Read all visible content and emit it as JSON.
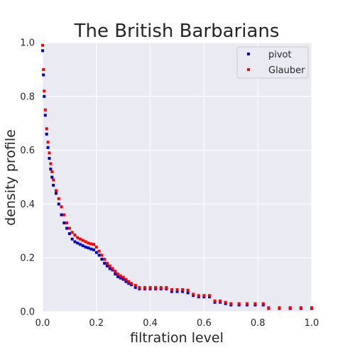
{
  "chart_data": {
    "type": "scatter",
    "title": "The British Barbarians",
    "xlabel": "filtration level",
    "ylabel": "density profile",
    "xlim": [
      0.0,
      1.0
    ],
    "ylim": [
      0.0,
      1.0
    ],
    "xticks": [
      "0.0",
      "0.2",
      "0.4",
      "0.6",
      "0.8",
      "1.0"
    ],
    "yticks": [
      "0.0",
      "0.2",
      "0.4",
      "0.6",
      "0.8",
      "1.0"
    ],
    "grid": true,
    "legend_position": "top-right",
    "series": [
      {
        "name": "pivot",
        "color": "#0000cc",
        "points": [
          [
            0.0,
            0.97
          ],
          [
            0.003,
            0.88
          ],
          [
            0.006,
            0.8
          ],
          [
            0.01,
            0.73
          ],
          [
            0.015,
            0.66
          ],
          [
            0.02,
            0.61
          ],
          [
            0.025,
            0.57
          ],
          [
            0.03,
            0.53
          ],
          [
            0.035,
            0.5
          ],
          [
            0.04,
            0.47
          ],
          [
            0.05,
            0.44
          ],
          [
            0.06,
            0.4
          ],
          [
            0.07,
            0.36
          ],
          [
            0.08,
            0.33
          ],
          [
            0.09,
            0.31
          ],
          [
            0.1,
            0.29
          ],
          [
            0.11,
            0.27
          ],
          [
            0.12,
            0.26
          ],
          [
            0.13,
            0.255
          ],
          [
            0.14,
            0.25
          ],
          [
            0.15,
            0.245
          ],
          [
            0.16,
            0.24
          ],
          [
            0.17,
            0.237
          ],
          [
            0.18,
            0.233
          ],
          [
            0.19,
            0.23
          ],
          [
            0.2,
            0.22
          ],
          [
            0.21,
            0.21
          ],
          [
            0.22,
            0.195
          ],
          [
            0.23,
            0.18
          ],
          [
            0.24,
            0.17
          ],
          [
            0.25,
            0.16
          ],
          [
            0.26,
            0.155
          ],
          [
            0.27,
            0.14
          ],
          [
            0.28,
            0.13
          ],
          [
            0.29,
            0.125
          ],
          [
            0.3,
            0.12
          ],
          [
            0.31,
            0.112
          ],
          [
            0.32,
            0.105
          ],
          [
            0.33,
            0.1
          ],
          [
            0.345,
            0.09
          ],
          [
            0.36,
            0.085
          ],
          [
            0.38,
            0.085
          ],
          [
            0.4,
            0.085
          ],
          [
            0.42,
            0.085
          ],
          [
            0.44,
            0.085
          ],
          [
            0.46,
            0.085
          ],
          [
            0.48,
            0.075
          ],
          [
            0.5,
            0.075
          ],
          [
            0.52,
            0.075
          ],
          [
            0.54,
            0.07
          ],
          [
            0.56,
            0.06
          ],
          [
            0.58,
            0.055
          ],
          [
            0.6,
            0.055
          ],
          [
            0.62,
            0.055
          ],
          [
            0.64,
            0.035
          ],
          [
            0.66,
            0.035
          ],
          [
            0.68,
            0.03
          ],
          [
            0.7,
            0.025
          ],
          [
            0.73,
            0.025
          ],
          [
            0.76,
            0.025
          ],
          [
            0.79,
            0.025
          ],
          [
            0.82,
            0.025
          ],
          [
            0.84,
            0.012
          ],
          [
            0.88,
            0.012
          ],
          [
            0.92,
            0.012
          ],
          [
            0.96,
            0.012
          ],
          [
            1.0,
            0.012
          ]
        ]
      },
      {
        "name": "Glauber",
        "color": "#ff0000",
        "points": [
          [
            0.0,
            0.99
          ],
          [
            0.003,
            0.9
          ],
          [
            0.006,
            0.82
          ],
          [
            0.01,
            0.75
          ],
          [
            0.015,
            0.68
          ],
          [
            0.02,
            0.63
          ],
          [
            0.025,
            0.59
          ],
          [
            0.03,
            0.55
          ],
          [
            0.035,
            0.52
          ],
          [
            0.04,
            0.49
          ],
          [
            0.05,
            0.45
          ],
          [
            0.06,
            0.42
          ],
          [
            0.07,
            0.39
          ],
          [
            0.08,
            0.36
          ],
          [
            0.09,
            0.33
          ],
          [
            0.1,
            0.31
          ],
          [
            0.11,
            0.295
          ],
          [
            0.12,
            0.285
          ],
          [
            0.13,
            0.275
          ],
          [
            0.14,
            0.27
          ],
          [
            0.15,
            0.265
          ],
          [
            0.16,
            0.26
          ],
          [
            0.17,
            0.255
          ],
          [
            0.18,
            0.252
          ],
          [
            0.19,
            0.25
          ],
          [
            0.2,
            0.24
          ],
          [
            0.21,
            0.225
          ],
          [
            0.22,
            0.21
          ],
          [
            0.23,
            0.195
          ],
          [
            0.24,
            0.18
          ],
          [
            0.25,
            0.17
          ],
          [
            0.26,
            0.16
          ],
          [
            0.27,
            0.15
          ],
          [
            0.28,
            0.14
          ],
          [
            0.29,
            0.133
          ],
          [
            0.3,
            0.128
          ],
          [
            0.31,
            0.12
          ],
          [
            0.32,
            0.112
          ],
          [
            0.33,
            0.105
          ],
          [
            0.345,
            0.098
          ],
          [
            0.36,
            0.09
          ],
          [
            0.38,
            0.09
          ],
          [
            0.4,
            0.09
          ],
          [
            0.42,
            0.09
          ],
          [
            0.44,
            0.09
          ],
          [
            0.46,
            0.09
          ],
          [
            0.48,
            0.082
          ],
          [
            0.5,
            0.082
          ],
          [
            0.52,
            0.082
          ],
          [
            0.54,
            0.08
          ],
          [
            0.56,
            0.065
          ],
          [
            0.58,
            0.06
          ],
          [
            0.6,
            0.06
          ],
          [
            0.62,
            0.06
          ],
          [
            0.64,
            0.04
          ],
          [
            0.66,
            0.04
          ],
          [
            0.68,
            0.035
          ],
          [
            0.7,
            0.03
          ],
          [
            0.73,
            0.03
          ],
          [
            0.76,
            0.03
          ],
          [
            0.79,
            0.03
          ],
          [
            0.82,
            0.03
          ],
          [
            0.84,
            0.015
          ],
          [
            0.88,
            0.015
          ],
          [
            0.92,
            0.015
          ],
          [
            0.96,
            0.015
          ],
          [
            1.0,
            0.015
          ]
        ]
      }
    ]
  }
}
